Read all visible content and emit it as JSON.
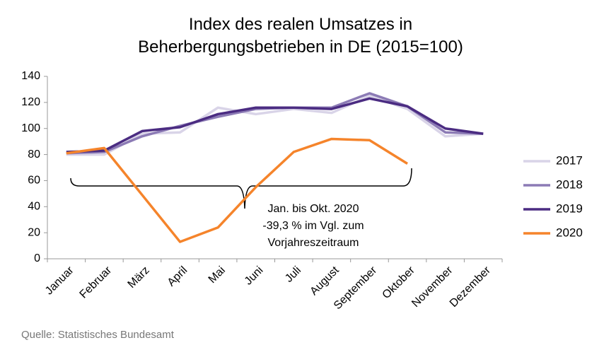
{
  "chart_data": {
    "type": "line",
    "title": [
      "Index des realen Umsatzes in",
      "Beherbergungsbetrieben in DE (2015=100)"
    ],
    "categories": [
      "Januar",
      "Februar",
      "März",
      "April",
      "Mai",
      "Juni",
      "Juli",
      "August",
      "September",
      "Oktober",
      "November",
      "Dezember"
    ],
    "series": [
      {
        "name": "2017",
        "color": "#d9d4e8",
        "values": [
          80,
          80,
          96,
          97,
          116,
          111,
          115,
          112,
          125,
          115,
          94,
          96
        ]
      },
      {
        "name": "2018",
        "color": "#8c7bb5",
        "values": [
          81,
          82,
          94,
          102,
          109,
          115,
          116,
          116,
          127,
          117,
          97,
          96
        ]
      },
      {
        "name": "2019",
        "color": "#4b2c82",
        "values": [
          82,
          83,
          98,
          101,
          111,
          116,
          116,
          115,
          123,
          117,
          100,
          96
        ]
      },
      {
        "name": "2020",
        "color": "#f5842b",
        "values": [
          81,
          85,
          49,
          13,
          24,
          55,
          82,
          92,
          91,
          73,
          null,
          null
        ]
      }
    ],
    "ylim": [
      0,
      140
    ],
    "yticks": [
      0,
      20,
      40,
      60,
      80,
      100,
      120,
      140
    ],
    "annotation": [
      "Jan. bis Okt. 2020",
      "-39,3 % im Vgl. zum",
      "Vorjahreszeitraum"
    ],
    "source": "Quelle: Statistisches Bundesamt",
    "legend": "right"
  }
}
